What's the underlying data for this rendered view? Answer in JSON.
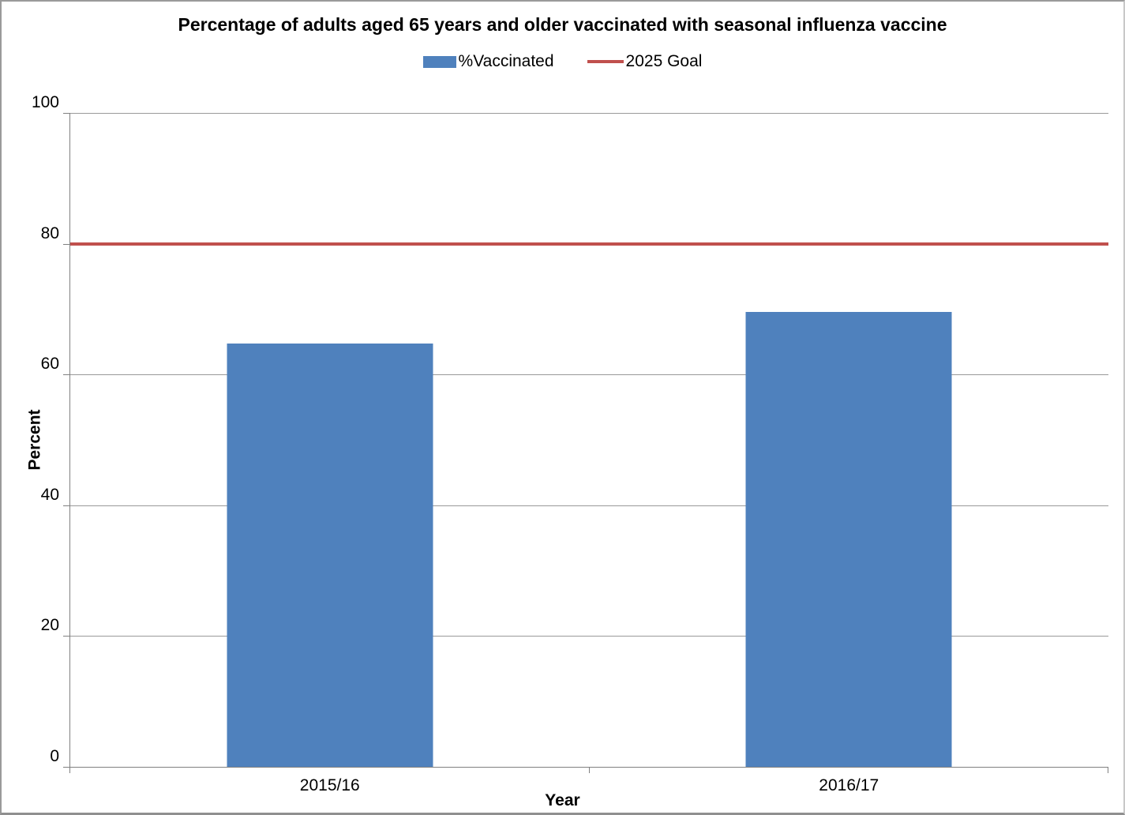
{
  "chart_data": {
    "type": "bar",
    "title": "Percentage of adults aged 65 years and older vaccinated with seasonal influenza vaccine",
    "categories": [
      "2015/16",
      "2016/17"
    ],
    "series": [
      {
        "name": "%Vaccinated",
        "type": "bar",
        "values": [
          64.7,
          69.6
        ],
        "color": "#4F81BD"
      },
      {
        "name": "2025 Goal",
        "type": "line",
        "values": [
          80,
          80
        ],
        "color": "#C0504D"
      }
    ],
    "xlabel": "Year",
    "ylabel": "Percent",
    "ylim": [
      0,
      100
    ],
    "yticks": [
      0,
      20,
      40,
      60,
      80,
      100
    ],
    "grid": true,
    "gridline_color": "#999999",
    "axis_color": "#808080",
    "legend_position": "top"
  }
}
